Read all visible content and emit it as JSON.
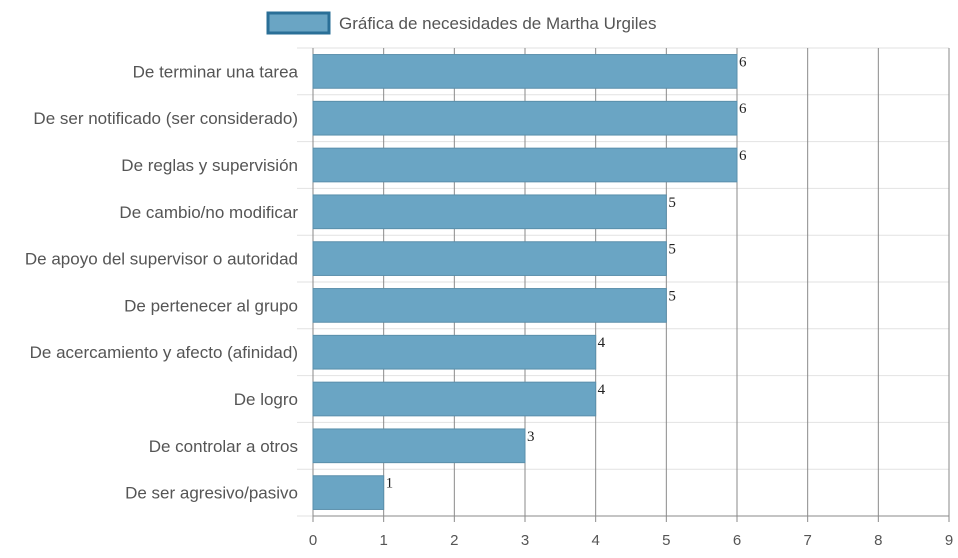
{
  "chart_data": {
    "type": "bar",
    "orientation": "horizontal",
    "categories": [
      "De terminar una tarea",
      "De ser notificado (ser considerado)",
      "De reglas y supervisión",
      "De cambio/no modificar",
      "De apoyo del supervisor o autoridad",
      "De pertenecer al grupo",
      "De acercamiento y afecto (afinidad)",
      "De logro",
      "De controlar a otros",
      "De ser agresivo/pasivo"
    ],
    "series": [
      {
        "name": "Gráfica de necesidades de Martha Urgiles",
        "values": [
          6,
          6,
          6,
          5,
          5,
          5,
          4,
          4,
          3,
          1
        ]
      }
    ],
    "xlim": [
      0,
      9
    ],
    "xticks": [
      "0",
      "1",
      "2",
      "3",
      "4",
      "5",
      "6",
      "7",
      "8",
      "9"
    ],
    "grid": true,
    "legend_position": "top-center",
    "data_labels": true,
    "colors": {
      "bar_fill": "#6aa5c4",
      "bar_stroke": "#5a8fab",
      "legend_fill": "#6aa5c4",
      "legend_stroke": "#2a6f97",
      "grid_vertical": "#8a8a8a",
      "grid_horizontal": "#e2e2e2",
      "axis": "#8a8a8a"
    }
  }
}
